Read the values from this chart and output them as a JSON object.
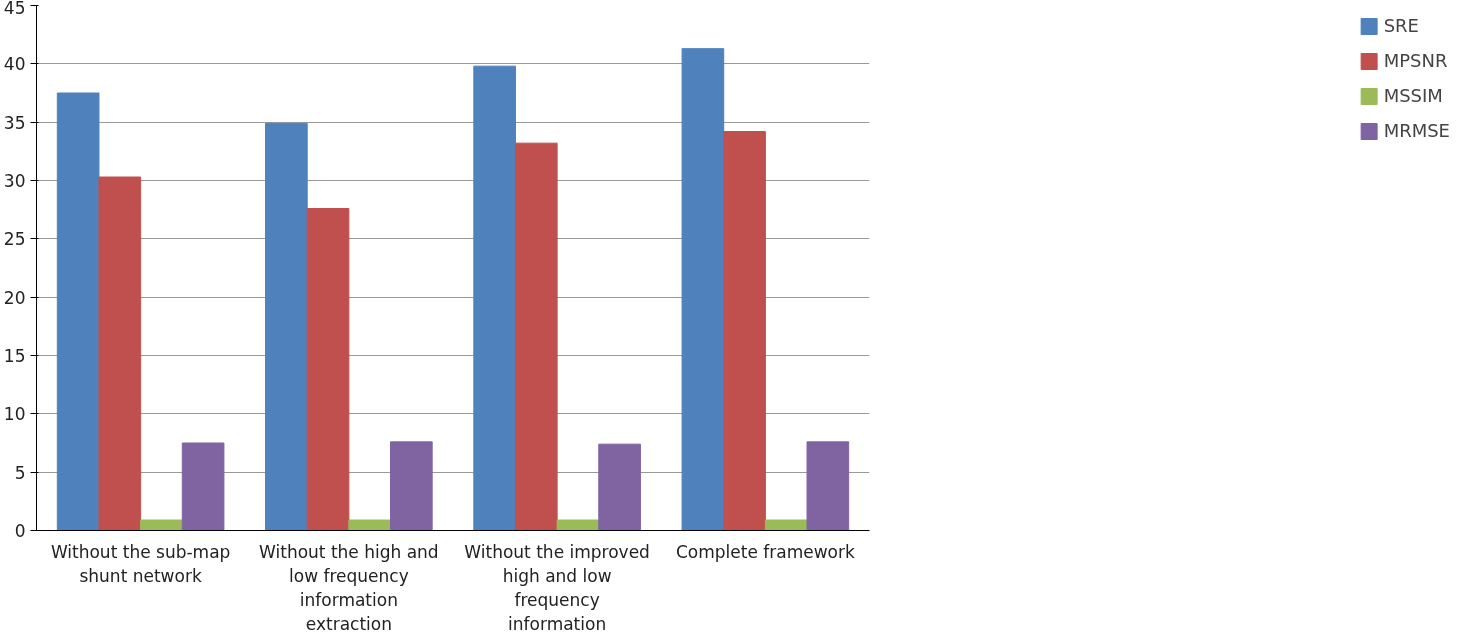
{
  "chart_data": {
    "type": "bar",
    "categories": [
      "Without the sub-map shunt network",
      "Without the high and low frequency information extraction",
      "Without the improved high and low frequency information",
      "Complete framework"
    ],
    "series": [
      {
        "name": "SRE",
        "color": "#4f81bd",
        "values": [
          37.5,
          34.9,
          39.8,
          41.3
        ]
      },
      {
        "name": "MPSNR",
        "color": "#c0504d",
        "values": [
          30.3,
          27.6,
          33.2,
          34.2
        ]
      },
      {
        "name": "MSSIM",
        "color": "#9bbb59",
        "values": [
          0.9,
          0.9,
          0.9,
          0.9
        ]
      },
      {
        "name": "MRMSE",
        "color": "#8064a2",
        "values": [
          7.5,
          7.6,
          7.4,
          7.6
        ]
      }
    ],
    "ylim": [
      0,
      45
    ],
    "yticks": [
      0,
      5,
      10,
      15,
      20,
      25,
      30,
      35,
      40,
      45
    ],
    "grid": "y",
    "legend": "right"
  }
}
